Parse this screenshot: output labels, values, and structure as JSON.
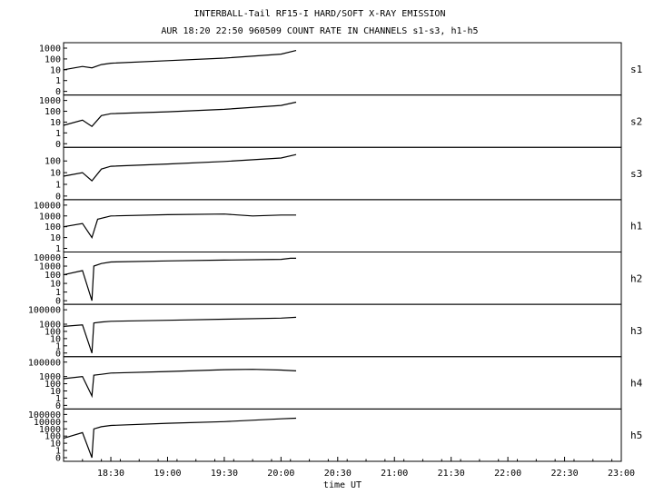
{
  "title": {
    "line1": "INTERBALL-Tail RF15-I HARD/SOFT X-RAY EMISSION",
    "line2": "AUR 18:20 22:50 960509  COUNT RATE IN CHANNELS s1-s3, h1-h5"
  },
  "chart_data": {
    "type": "line",
    "xlabel": "time UT",
    "xlim": [
      "18:05",
      "23:00"
    ],
    "x_ticks": [
      "18:30",
      "19:00",
      "19:30",
      "20:00",
      "20:30",
      "21:00",
      "21:30",
      "22:00",
      "22:30",
      "23:00"
    ],
    "y_scale": "log",
    "grid": false,
    "panels": [
      {
        "name": "s1",
        "y_ticks": [
          "1000",
          "100",
          "10",
          "1",
          "0"
        ],
        "ylim": [
          0,
          1000
        ],
        "series": [
          {
            "x": [
              "18:05",
              "18:15",
              "18:20",
              "18:25",
              "18:30",
              "19:00",
              "19:30",
              "20:00",
              "20:08"
            ],
            "y": [
              10,
              20,
              15,
              30,
              40,
              70,
              120,
              280,
              600
            ]
          }
        ]
      },
      {
        "name": "s2",
        "y_ticks": [
          "1000",
          "100",
          "10",
          "1",
          "0"
        ],
        "ylim": [
          0,
          1000
        ],
        "series": [
          {
            "x": [
              "18:05",
              "18:15",
              "18:20",
              "18:25",
              "18:30",
              "19:00",
              "19:30",
              "20:00",
              "20:08"
            ],
            "y": [
              5,
              15,
              4,
              40,
              60,
              90,
              150,
              350,
              700
            ]
          }
        ]
      },
      {
        "name": "s3",
        "y_ticks": [
          "100",
          "10",
          "1",
          "0"
        ],
        "ylim": [
          0,
          500
        ],
        "series": [
          {
            "x": [
              "18:05",
              "18:15",
              "18:20",
              "18:25",
              "18:30",
              "19:00",
              "19:30",
              "20:00",
              "20:08"
            ],
            "y": [
              5,
              10,
              2,
              20,
              35,
              55,
              90,
              180,
              350
            ]
          }
        ]
      },
      {
        "name": "h1",
        "y_ticks": [
          "10000",
          "1000",
          "100",
          "10",
          "1"
        ],
        "ylim": [
          1,
          10000
        ],
        "series": [
          {
            "x": [
              "18:05",
              "18:15",
              "18:20",
              "18:23",
              "18:30",
              "19:00",
              "19:30",
              "19:45",
              "20:00",
              "20:08"
            ],
            "y": [
              100,
              200,
              10,
              500,
              1000,
              1300,
              1500,
              1000,
              1200,
              1200
            ]
          }
        ]
      },
      {
        "name": "h2",
        "y_ticks": [
          "10000",
          "1000",
          "100",
          "10",
          "1",
          "0"
        ],
        "ylim": [
          0,
          10000
        ],
        "series": [
          {
            "x": [
              "18:05",
              "18:15",
              "18:20",
              "18:21",
              "18:25",
              "18:30",
              "19:00",
              "19:30",
              "20:00",
              "20:05",
              "20:08"
            ],
            "y": [
              100,
              300,
              0,
              1000,
              2000,
              3000,
              4000,
              5000,
              6000,
              8000,
              8000
            ]
          }
        ]
      },
      {
        "name": "h3",
        "y_ticks": [
          "100000",
          "1000",
          "100",
          "10",
          "1",
          "0"
        ],
        "ylim": [
          0,
          100000
        ],
        "series": [
          {
            "x": [
              "18:05",
              "18:15",
              "18:20",
              "18:21",
              "18:25",
              "18:30",
              "19:00",
              "19:30",
              "20:00",
              "20:08"
            ],
            "y": [
              500,
              800,
              0,
              1500,
              2000,
              2500,
              3500,
              5000,
              7000,
              9000
            ]
          }
        ]
      },
      {
        "name": "h4",
        "y_ticks": [
          "100000",
          "1000",
          "100",
          "10",
          "1",
          "0"
        ],
        "ylim": [
          0,
          100000
        ],
        "series": [
          {
            "x": [
              "18:05",
              "18:15",
              "18:20",
              "18:21",
              "18:25",
              "18:30",
              "19:00",
              "19:30",
              "19:45",
              "20:00",
              "20:08"
            ],
            "y": [
              500,
              1000,
              2,
              1500,
              2000,
              3000,
              5000,
              9000,
              10000,
              8000,
              6000
            ]
          }
        ]
      },
      {
        "name": "h5",
        "y_ticks": [
          "100000",
          "10000",
          "1000",
          "100",
          "10",
          "1",
          "0"
        ],
        "ylim": [
          0,
          100000
        ],
        "series": [
          {
            "x": [
              "18:05",
              "18:15",
              "18:20",
              "18:21",
              "18:25",
              "18:30",
              "19:00",
              "19:30",
              "20:00",
              "20:08"
            ],
            "y": [
              50,
              300,
              0,
              1000,
              2000,
              3000,
              6000,
              10000,
              25000,
              30000
            ]
          }
        ]
      }
    ]
  }
}
